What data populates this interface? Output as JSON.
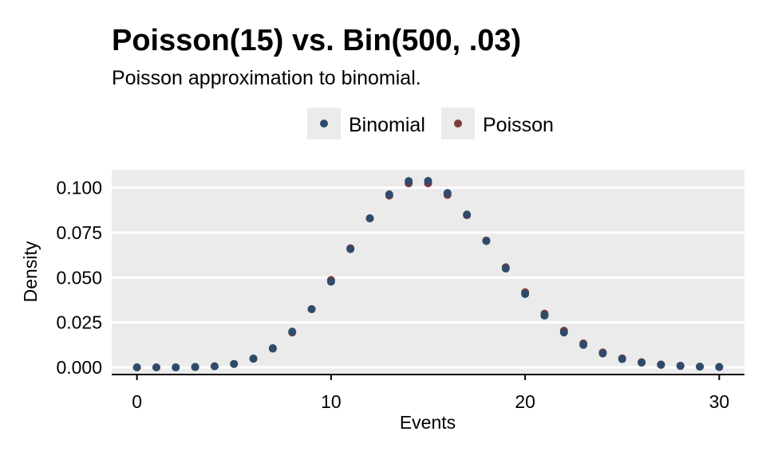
{
  "chart_data": {
    "type": "scatter",
    "title": "Poisson(15) vs. Bin(500, .03)",
    "subtitle": "Poisson approximation to binomial.",
    "xlabel": "Events",
    "ylabel": "Density",
    "xlim": [
      -1.3,
      31.3
    ],
    "ylim": [
      -0.004,
      0.11
    ],
    "x_ticks": [
      0,
      10,
      20,
      30
    ],
    "x_tick_labels": [
      "0",
      "10",
      "20",
      "30"
    ],
    "y_ticks": [
      0,
      0.025,
      0.05,
      0.075,
      0.1
    ],
    "y_tick_labels": [
      "0.000",
      "0.025",
      "0.050",
      "0.075",
      "0.100"
    ],
    "grid": true,
    "legend_position": "top",
    "x": [
      0,
      1,
      2,
      3,
      4,
      5,
      6,
      7,
      8,
      9,
      10,
      11,
      12,
      13,
      14,
      15,
      16,
      17,
      18,
      19,
      20,
      21,
      22,
      23,
      24,
      25,
      26,
      27,
      28,
      29,
      30
    ],
    "series": [
      {
        "name": "Binomial",
        "color": "#2f4b6b",
        "values": [
          0.0,
          0.0,
          0.0,
          0.0002,
          0.0006,
          0.0019,
          0.0049,
          0.0107,
          0.0199,
          0.0324,
          0.0477,
          0.0658,
          0.083,
          0.0963,
          0.1037,
          0.1038,
          0.097,
          0.0851,
          0.0703,
          0.055,
          0.0408,
          0.0288,
          0.0194,
          0.0125,
          0.0077,
          0.0046,
          0.0026,
          0.0014,
          0.0008,
          0.0004,
          0.0002
        ]
      },
      {
        "name": "Poisson",
        "color": "#7a3b3b",
        "values": [
          0.0,
          0.0,
          0.0,
          0.0002,
          0.0006,
          0.0019,
          0.0048,
          0.0104,
          0.0194,
          0.0324,
          0.0486,
          0.0663,
          0.0829,
          0.0956,
          0.1024,
          0.1024,
          0.096,
          0.0847,
          0.0706,
          0.0557,
          0.0418,
          0.0299,
          0.0204,
          0.0133,
          0.0083,
          0.005,
          0.0029,
          0.0016,
          0.0009,
          0.0004,
          0.0002
        ]
      }
    ]
  }
}
